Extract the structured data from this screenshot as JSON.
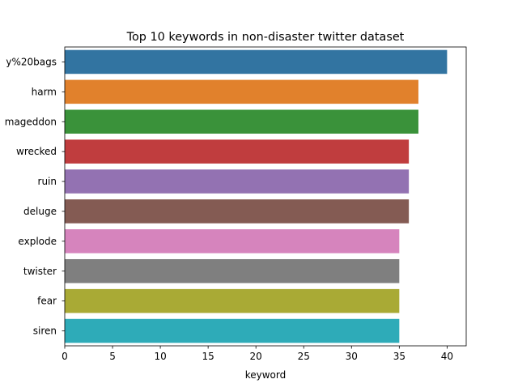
{
  "chart_data": {
    "type": "bar",
    "orientation": "horizontal",
    "title": "Top 10 keywords in non-disaster twitter dataset",
    "xlabel": "keyword",
    "ylabel": "",
    "categories": [
      "y%20bags",
      "harm",
      "mageddon",
      "wrecked",
      "ruin",
      "deluge",
      "explode",
      "twister",
      "fear",
      "siren"
    ],
    "values": [
      40,
      37,
      37,
      36,
      36,
      36,
      35,
      35,
      35,
      35
    ],
    "colors": [
      "#3274a1",
      "#e1812c",
      "#3a923a",
      "#c03d3e",
      "#9372b2",
      "#845b53",
      "#d684bd",
      "#7f7f7f",
      "#a9aa35",
      "#2eabb8"
    ],
    "xlim": [
      0,
      42
    ],
    "xticks": [
      0,
      5,
      10,
      15,
      20,
      25,
      30,
      35,
      40
    ],
    "grid": false,
    "legend": "none"
  }
}
